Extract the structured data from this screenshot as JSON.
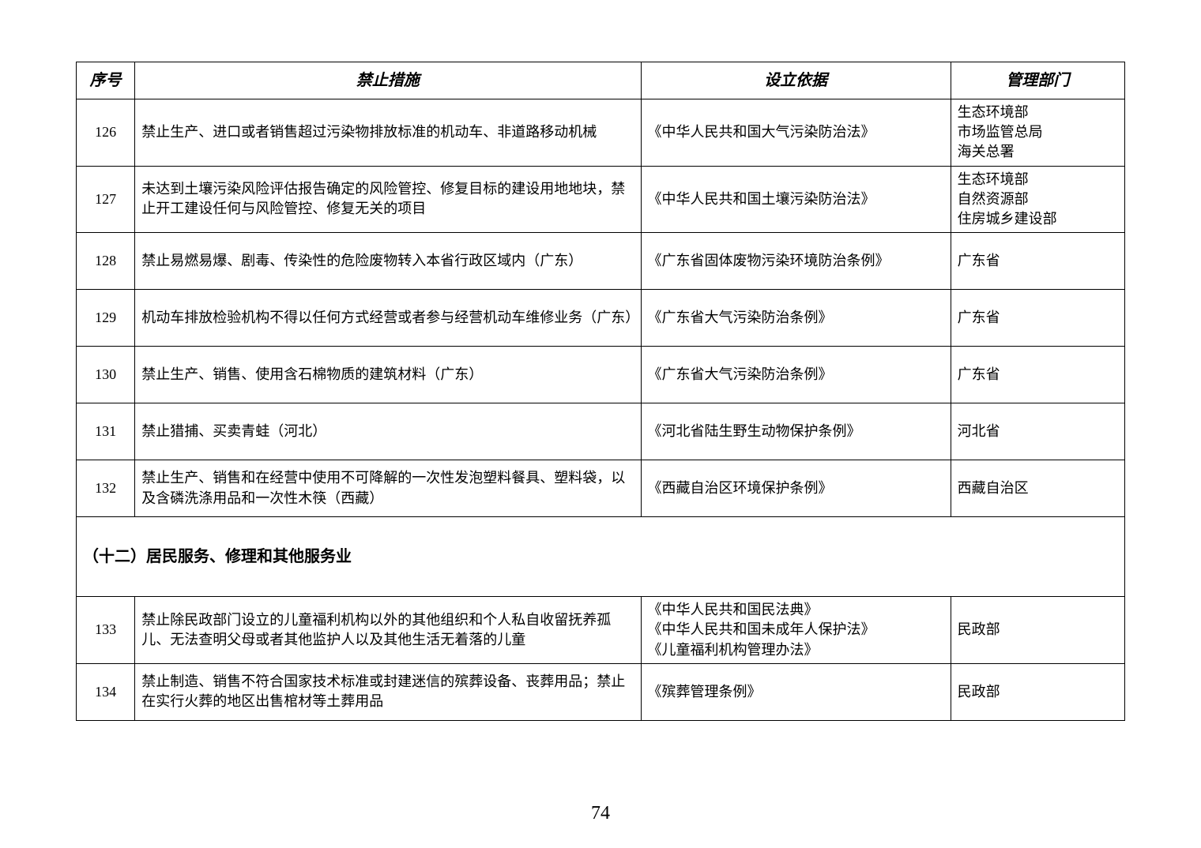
{
  "headers": {
    "seq": "序号",
    "measure": "禁止措施",
    "basis": "设立依据",
    "dept": "管理部门"
  },
  "section_title": "（十二）居民服务、修理和其他服务业",
  "page_number": "74",
  "rows": [
    {
      "seq": "126",
      "measure": "禁止生产、进口或者销售超过污染物排放标准的机动车、非道路移动机械",
      "basis": "《中华人民共和国大气污染防治法》",
      "dept": "生态环境部\n市场监管总局\n海关总署"
    },
    {
      "seq": "127",
      "measure": "未达到土壤污染风险评估报告确定的风险管控、修复目标的建设用地地块，禁止开工建设任何与风险管控、修复无关的项目",
      "basis": "《中华人民共和国土壤污染防治法》",
      "dept": "生态环境部\n自然资源部\n住房城乡建设部"
    },
    {
      "seq": "128",
      "measure": "禁止易燃易爆、剧毒、传染性的危险废物转入本省行政区域内（广东）",
      "basis": "《广东省固体废物污染环境防治条例》",
      "dept": "广东省"
    },
    {
      "seq": "129",
      "measure": "机动车排放检验机构不得以任何方式经营或者参与经营机动车维修业务（广东）",
      "basis": "《广东省大气污染防治条例》",
      "dept": "广东省"
    },
    {
      "seq": "130",
      "measure": "禁止生产、销售、使用含石棉物质的建筑材料（广东）",
      "basis": "《广东省大气污染防治条例》",
      "dept": "广东省"
    },
    {
      "seq": "131",
      "measure": "禁止猎捕、买卖青蛙（河北）",
      "basis": "《河北省陆生野生动物保护条例》",
      "dept": "河北省"
    },
    {
      "seq": "132",
      "measure": "禁止生产、销售和在经营中使用不可降解的一次性发泡塑料餐具、塑料袋，以及含磷洗涤用品和一次性木筷（西藏）",
      "basis": "《西藏自治区环境保护条例》",
      "dept": "西藏自治区"
    },
    {
      "seq": "133",
      "measure": "禁止除民政部门设立的儿童福利机构以外的其他组织和个人私自收留抚养孤儿、无法查明父母或者其他监护人以及其他生活无着落的儿童",
      "basis": "《中华人民共和国民法典》\n《中华人民共和国未成年人保护法》\n《儿童福利机构管理办法》",
      "dept": "民政部"
    },
    {
      "seq": "134",
      "measure": "禁止制造、销售不符合国家技术标准或封建迷信的殡葬设备、丧葬用品；禁止在实行火葬的地区出售棺材等土葬用品",
      "basis": "《殡葬管理条例》",
      "dept": "民政部"
    }
  ]
}
